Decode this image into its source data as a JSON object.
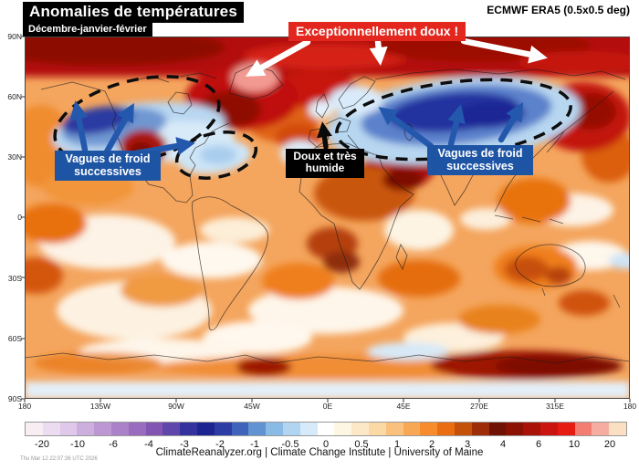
{
  "header": {
    "title": "Anomalies de températures",
    "subtitle": "Décembre-janvier-février",
    "dataset": "ECMWF ERA5 (0.5x0.5 deg)"
  },
  "annotations": {
    "warm_banner": "Exceptionnellement doux !",
    "cold_left": {
      "line1": "Vagues de froid",
      "line2": "successives"
    },
    "cold_right": {
      "line1": "Vagues de froid",
      "line2": "successives"
    },
    "mild": {
      "line1": "Doux et très",
      "line2": "humide"
    }
  },
  "axes": {
    "lat_ticks": [
      "90N",
      "60N",
      "30N",
      "0",
      "30S",
      "60S",
      "90S"
    ],
    "lon_ticks": [
      "180",
      "135W",
      "90W",
      "45W",
      "0E",
      "45E",
      "270E",
      "315E",
      "180"
    ]
  },
  "colorbar": {
    "tick_labels": [
      "-20",
      "-10",
      "-6",
      "-4",
      "-3",
      "-2",
      "-1",
      "-0.5",
      "0",
      "0.5",
      "1",
      "2",
      "3",
      "4",
      "6",
      "10",
      "20"
    ],
    "cells": [
      "#f8edf2",
      "#ecdcf1",
      "#dfc8e9",
      "#cdafdf",
      "#bc97d4",
      "#ab82ca",
      "#9a6cbf",
      "#8355b3",
      "#5f46ab",
      "#34339e",
      "#1d2492",
      "#2b3da5",
      "#3f63bb",
      "#6192d2",
      "#8abbe6",
      "#b1d5f1",
      "#d6eaf9",
      "#ffffff",
      "#fdf6e3",
      "#fce8c6",
      "#fbd9a4",
      "#fac17c",
      "#f8a855",
      "#f68c2b",
      "#ea6d11",
      "#c4510a",
      "#9c2d06",
      "#6f1103",
      "#8c1105",
      "#a81207",
      "#c91410",
      "#e61b11",
      "#f37d71",
      "#f7aca1",
      "#fbdfc3"
    ]
  },
  "footer": {
    "credit": "ClimateReanalyzer.org | Climate Change Institute | University of Maine",
    "timestamp": "Thu Mar 12 22:07:36 UTC 2026"
  },
  "colors": {
    "banner_red": "#e3271e",
    "label_blue": "#1e54a4",
    "arrow_blue": "#2458ac",
    "label_black": "#000000",
    "cold_core": "#1d2492",
    "warm_core": "#6f1103"
  },
  "chart_data": {
    "type": "heatmap",
    "title": "Anomalies de températures",
    "subtitle": "Décembre-janvier-février",
    "dataset": "ECMWF ERA5 (0.5x0.5 deg)",
    "projection": "equirectangular world map",
    "colorbar_ticks": [
      -20,
      -10,
      -6,
      -4,
      -3,
      -2,
      -1,
      -0.5,
      0,
      0.5,
      1,
      2,
      3,
      4,
      6,
      10,
      20
    ],
    "lat_ticks": [
      "90N",
      "60N",
      "30N",
      "0",
      "30S",
      "60S",
      "90S"
    ],
    "lon_ticks": [
      "180",
      "135W",
      "90W",
      "45W",
      "0E",
      "45E",
      "270E",
      "315E",
      "180"
    ],
    "annotation_labels": [
      "Exceptionnellement doux !",
      "Vagues de froid successives",
      "Vagues de froid successives",
      "Doux et très humide"
    ]
  }
}
